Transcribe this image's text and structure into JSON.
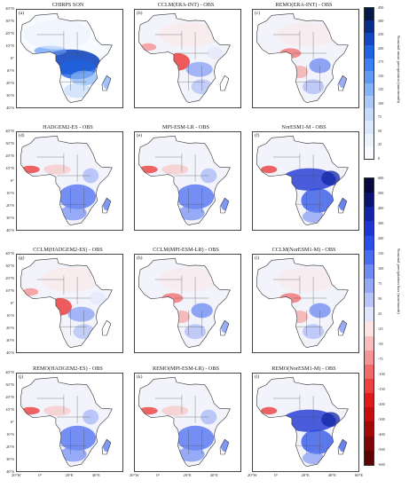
{
  "panels": [
    {
      "id": "a",
      "title": "CHIRPS  SON",
      "label": "(a)",
      "kind": "mean"
    },
    {
      "id": "b",
      "title": "CCLM(ERA-INT) - OBS",
      "label": "(b)",
      "kind": "bias-red-west"
    },
    {
      "id": "c",
      "title": "REMO(ERA-INT) - OBS",
      "label": "(c)",
      "kind": "bias-mixed"
    },
    {
      "id": "d",
      "title": "HADGEM2-ES - OBS",
      "label": "(d)",
      "kind": "bias-blue-south"
    },
    {
      "id": "e",
      "title": "MPI-ESM-LR - OBS",
      "label": "(e)",
      "kind": "bias-blue-south"
    },
    {
      "id": "f",
      "title": "NorESM1-M - OBS",
      "label": "(f)",
      "kind": "bias-blue-strong"
    },
    {
      "id": "g",
      "title": "CCLM(HADGEM2-ES) - OBS",
      "label": "(g)",
      "kind": "bias-red-west"
    },
    {
      "id": "h",
      "title": "CCLM(MPI-ESM-LR) - OBS",
      "label": "(h)",
      "kind": "bias-mixed"
    },
    {
      "id": "i",
      "title": "CCLM(NorESM1-M) - OBS",
      "label": "(i)",
      "kind": "bias-mixed"
    },
    {
      "id": "j",
      "title": "REMO(HADGEM2-ES) - OBS",
      "label": "(j)",
      "kind": "bias-blue-south"
    },
    {
      "id": "k",
      "title": "REMO(MPI-ESM-LR) - OBS",
      "label": "(k)",
      "kind": "bias-blue-south"
    },
    {
      "id": "l",
      "title": "REMO(NorESM1-M) - OBS",
      "label": "(l)",
      "kind": "bias-blue-strong"
    }
  ],
  "lat_labels": [
    "40°N",
    "30°N",
    "20°N",
    "10°N",
    "0°",
    "10°S",
    "20°S",
    "30°S",
    "40°S"
  ],
  "lon_labels": [
    "20°W",
    "0°",
    "20°E",
    "40°E",
    "60°E"
  ],
  "colorbar_mean": {
    "ticks": [
      "450",
      "300",
      "250",
      "200",
      "175",
      "150",
      "125",
      "100",
      "75",
      "50",
      "25",
      "0"
    ],
    "label": "Seasonal mean precipitation (mm/month)",
    "colors": [
      "#061a4a",
      "#0a2f8a",
      "#1347c2",
      "#1e63e0",
      "#3b7ff0",
      "#5f9af5",
      "#86b3f7",
      "#a9c9f8",
      "#c6dbf9",
      "#dbe8fb",
      "#ecf3fd",
      "#f7faff"
    ]
  },
  "colorbar_bias": {
    "ticks": [
      "600",
      "500",
      "400",
      "300",
      "200",
      "150",
      "100",
      "75",
      "50",
      "25",
      "-25",
      "-50",
      "-75",
      "-100",
      "-150",
      "-200",
      "-300",
      "-400",
      "-500",
      "-600"
    ],
    "label": "Seasonal precipitation bias (mm/month)",
    "colors": [
      "#06083e",
      "#0b1470",
      "#1424a6",
      "#1d36d4",
      "#2a4fe8",
      "#4a6cf0",
      "#6e8af3",
      "#94a8f6",
      "#b9c5f8",
      "#dfe5fb",
      "#fde4e4",
      "#f9bcbc",
      "#f59494",
      "#f16a6a",
      "#ec3f3f",
      "#e11919",
      "#c50d0d",
      "#a30909",
      "#7f0606",
      "#5c0404"
    ]
  }
}
